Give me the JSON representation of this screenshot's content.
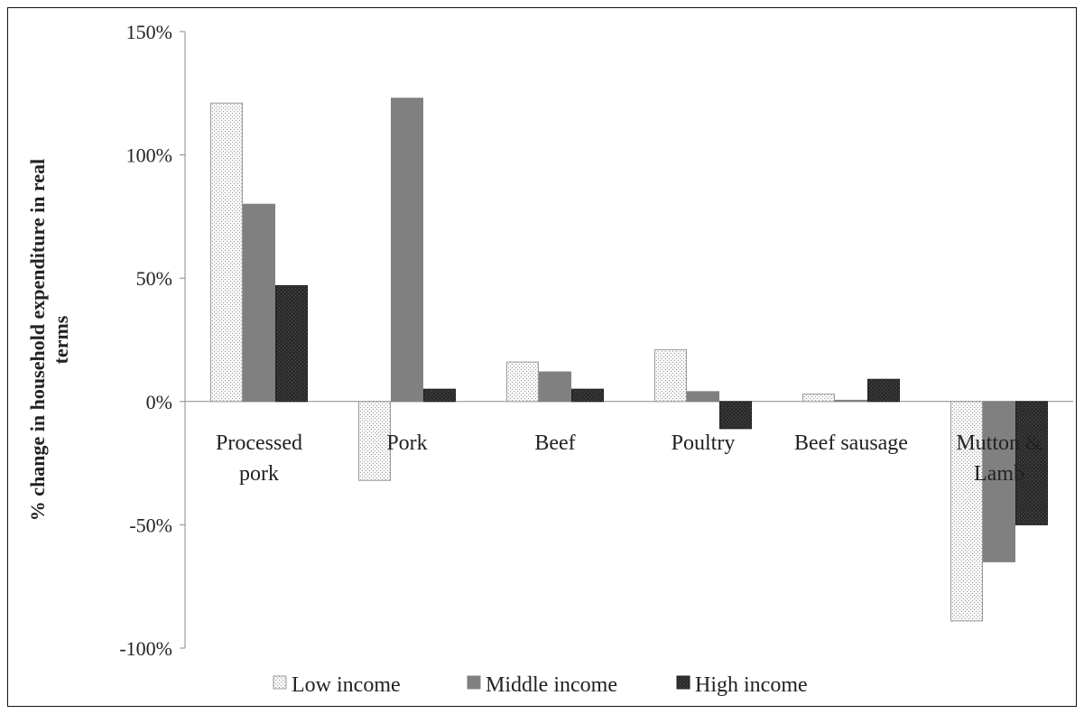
{
  "chart_data": {
    "type": "bar",
    "title": "",
    "xlabel": "",
    "ylabel_lines": [
      "% change in household expenditure in real",
      "terms"
    ],
    "ylim": [
      -100,
      150
    ],
    "yticks": [
      -100,
      -50,
      0,
      50,
      100,
      150
    ],
    "ytick_labels": [
      "-100%",
      "-50%",
      "0%",
      "50%",
      "100%",
      "150%"
    ],
    "grid": false,
    "legend_position": "bottom",
    "categories": [
      [
        "Processed",
        "pork"
      ],
      [
        "Pork"
      ],
      [
        "Beef"
      ],
      [
        "Poultry"
      ],
      [
        "Beef sausage"
      ],
      [
        "Mutton &",
        "Lamb"
      ]
    ],
    "series": [
      {
        "name": "Low income",
        "values": [
          121,
          -32,
          16,
          21,
          3,
          -89
        ],
        "style": "dotted",
        "color": "#f2f2f2"
      },
      {
        "name": "Middle income",
        "values": [
          80,
          123,
          12,
          4,
          0.5,
          -65
        ],
        "style": "solid",
        "color": "#808080"
      },
      {
        "name": "High income",
        "values": [
          47,
          5,
          5,
          -11,
          9,
          -50
        ],
        "style": "dense",
        "color": "#2a2a2a"
      }
    ]
  }
}
